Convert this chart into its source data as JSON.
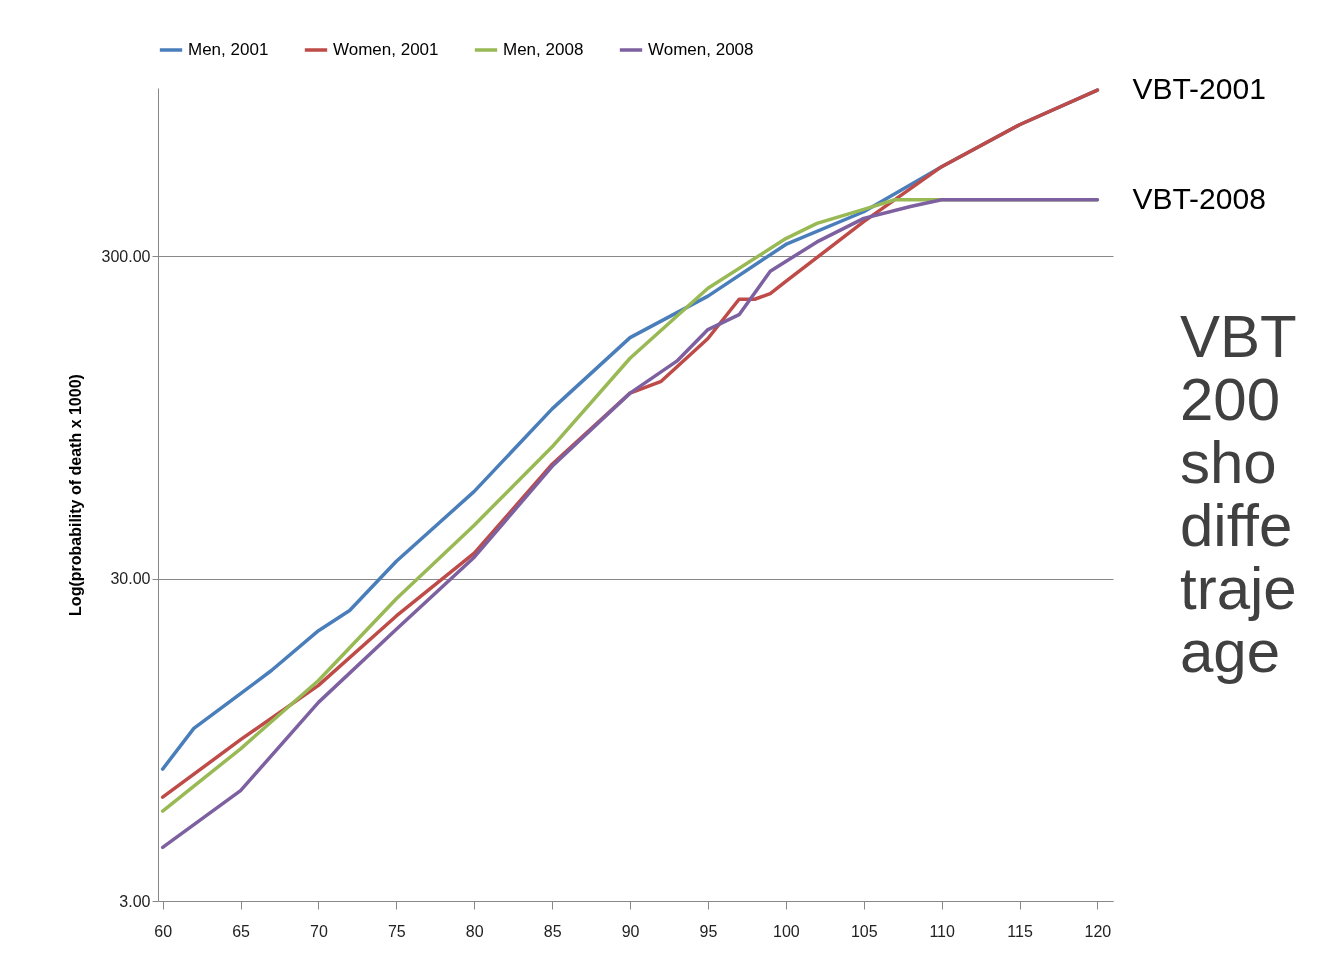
{
  "chart_data": {
    "type": "line",
    "ylabel": "Log(probability of death x 1000)",
    "xlim": [
      59.7,
      121
    ],
    "xticks": [
      60,
      65,
      70,
      75,
      80,
      85,
      90,
      95,
      100,
      105,
      110,
      115,
      120
    ],
    "ylim": [
      3,
      1000
    ],
    "yticks": [
      {
        "value": 3,
        "label": "3.00"
      },
      {
        "value": 30,
        "label": "30.00"
      },
      {
        "value": 300,
        "label": "300.00"
      }
    ],
    "log": true,
    "grid": "y",
    "legend": "top",
    "line_style": "solid",
    "series": [
      {
        "name": "Men, 2001",
        "color": "#4a7ebb",
        "x": [
          60,
          62,
          65,
          67,
          70,
          72,
          75,
          80,
          85,
          90,
          95,
          100,
          105,
          110,
          115,
          120
        ],
        "values": [
          7.7,
          10.3,
          13.2,
          15.6,
          20.7,
          23.9,
          34,
          56,
          101,
          168,
          226,
          327,
          413,
          570,
          769,
          985
        ]
      },
      {
        "name": "Women, 2001",
        "color": "#be4b48",
        "x": [
          60,
          65,
          70,
          75,
          80,
          85,
          90,
          92,
          95,
          97,
          98,
          99,
          100,
          105,
          110,
          115,
          120
        ],
        "values": [
          6.3,
          9.5,
          14,
          23,
          36,
          68,
          113,
          123,
          167,
          221,
          221,
          230,
          251,
          385,
          570,
          769,
          985
        ]
      },
      {
        "name": "Men, 2008",
        "color": "#98b954",
        "x": [
          60,
          65,
          70,
          75,
          80,
          85,
          90,
          95,
          100,
          102,
          105,
          107,
          110,
          120
        ],
        "values": [
          5.7,
          8.9,
          14.5,
          26,
          44,
          77,
          145,
          239,
          341,
          380,
          420,
          450,
          450,
          450
        ]
      },
      {
        "name": "Women, 2008",
        "color": "#7d60a0",
        "x": [
          60,
          65,
          70,
          75,
          80,
          85,
          90,
          93,
          95,
          97,
          99,
          102,
          105,
          108,
          110,
          120
        ],
        "values": [
          4.4,
          6.6,
          12.4,
          20.9,
          35,
          67,
          113,
          142,
          178,
          198,
          270,
          333,
          394,
          429,
          450,
          450
        ]
      }
    ],
    "annotations": [
      {
        "text": "VBT-2001",
        "x": 120,
        "y": 985
      },
      {
        "text": "VBT-2008",
        "x": 120,
        "y": 450
      },
      "VBT\n200\nsho\ndiffe\ntraje\nage"
    ]
  }
}
